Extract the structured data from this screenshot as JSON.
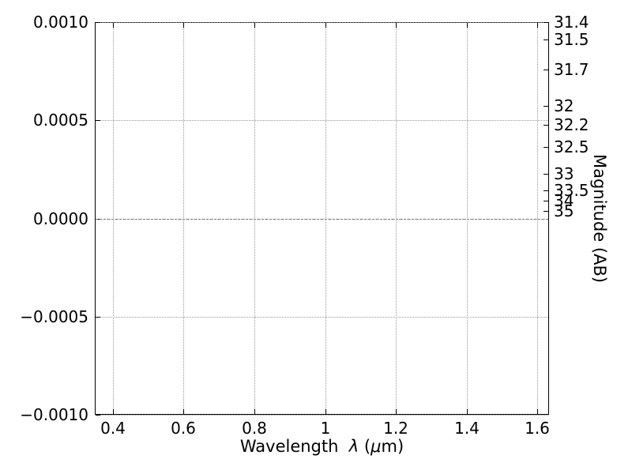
{
  "chart_data": {
    "type": "line",
    "title": "",
    "xlabel": "Wavelength λ (μm)",
    "xlabel_parts": {
      "prefix": "Wavelength  ",
      "lambda": "λ",
      "mid": " (",
      "mu": "μ",
      "suffix": "m)"
    },
    "ylabel_right": "Magnitude (AB)",
    "xlim": [
      0.349,
      1.633
    ],
    "ylim_left": [
      -0.001,
      0.001
    ],
    "x_ticks": [
      0.4,
      0.6,
      0.8,
      1,
      1.2,
      1.4,
      1.6
    ],
    "x_tick_labels": [
      "0.4",
      "0.6",
      "0.8",
      "1",
      "1.2",
      "1.4",
      "1.6"
    ],
    "y_ticks_left": [
      0.001,
      0.0005,
      0.0,
      -0.0005,
      -0.001
    ],
    "y_tick_labels_left": [
      "0.0010",
      "0.0005",
      "0.0000",
      "−0.0005",
      "−0.0010"
    ],
    "y_ticks_right_mag": [
      31.4,
      31.5,
      31.7,
      32,
      32.2,
      32.5,
      33,
      33.5,
      34,
      35
    ],
    "y_tick_labels_right": [
      "31.4",
      "31.5",
      "31.7",
      "32",
      "32.2",
      "32.5",
      "33",
      "33.5",
      "34",
      "35"
    ],
    "right_axis_flux_zeropoint": 23.9,
    "zero_line": 0.0,
    "grid": "dotted",
    "legend": "none",
    "series": [],
    "colors": {
      "background": "#ffffff",
      "spine": "#000000",
      "grid": "#999999",
      "zero_line": "#777777",
      "text": "#000000"
    }
  }
}
